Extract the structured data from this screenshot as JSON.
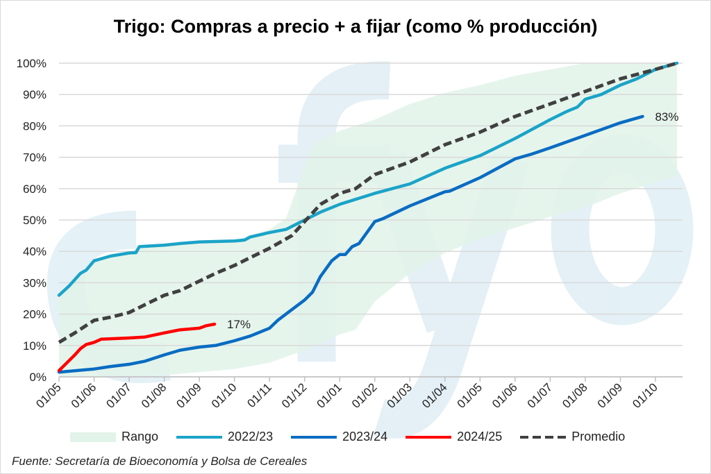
{
  "title": "Trigo: Compras a precio + a fijar (como % producción)",
  "source": "Fuente: Secretaría de Bioeconomía y Bolsa de Cereales",
  "watermark": "fyo",
  "chart_data": {
    "type": "line",
    "title": "Trigo: Compras a precio + a fijar (como % producción)",
    "x_ticks": [
      "01/05",
      "01/06",
      "01/07",
      "01/08",
      "01/09",
      "01/10",
      "01/11",
      "01/12",
      "01/01",
      "01/02",
      "01/03",
      "01/04",
      "01/05",
      "01/06",
      "01/07",
      "01/08",
      "01/09",
      "01/10"
    ],
    "y_ticks": [
      "0%",
      "10%",
      "20%",
      "30%",
      "40%",
      "50%",
      "60%",
      "70%",
      "80%",
      "90%",
      "100%"
    ],
    "ylim": [
      0,
      100
    ],
    "grid": true,
    "legend_position": "bottom",
    "band": {
      "name": "Rango",
      "color": "#e2f3e9",
      "lower": [
        [
          "01/05",
          0
        ],
        [
          "01/08",
          0.5
        ],
        [
          "01/09",
          1.5
        ],
        [
          "01/10",
          2.5
        ],
        [
          "01/11",
          4.5
        ],
        [
          "01/12",
          8.5
        ],
        [
          "01/01",
          13.5
        ],
        [
          "15/01",
          15
        ],
        [
          "01/02",
          24
        ],
        [
          "01/03",
          33
        ],
        [
          "01/04",
          39.5
        ],
        [
          "01/05",
          44
        ],
        [
          "01/06",
          47.5
        ],
        [
          "01/07",
          51
        ],
        [
          "01/08",
          54
        ],
        [
          "01/09",
          58.5
        ],
        [
          "01/10",
          62
        ],
        [
          "20/10",
          64
        ]
      ],
      "upper": [
        [
          "01/05",
          26
        ],
        [
          "20/05",
          33
        ],
        [
          "01/06",
          37
        ],
        [
          "01/07",
          39.5
        ],
        [
          "10/07",
          41.5
        ],
        [
          "01/08",
          42
        ],
        [
          "01/09",
          43
        ],
        [
          "01/10",
          43.5
        ],
        [
          "01/11",
          47
        ],
        [
          "15/11",
          50.5
        ],
        [
          "08/12",
          74
        ],
        [
          "01/01",
          78.5
        ],
        [
          "01/02",
          82
        ],
        [
          "01/03",
          87
        ],
        [
          "01/04",
          90.5
        ],
        [
          "01/05",
          93
        ],
        [
          "01/06",
          96
        ],
        [
          "01/07",
          98
        ],
        [
          "01/08",
          100
        ],
        [
          "20/10",
          100
        ]
      ]
    },
    "series": [
      {
        "name": "2022/23",
        "color": "#1ba3c8",
        "dashed": false,
        "points": [
          [
            "01/05",
            26
          ],
          [
            "10/05",
            29
          ],
          [
            "20/05",
            33
          ],
          [
            "25/05",
            34
          ],
          [
            "01/06",
            37
          ],
          [
            "15/06",
            38.5
          ],
          [
            "01/07",
            39.5
          ],
          [
            "07/07",
            39.6
          ],
          [
            "10/07",
            41.5
          ],
          [
            "01/08",
            42
          ],
          [
            "15/08",
            42.5
          ],
          [
            "01/09",
            43
          ],
          [
            "01/10",
            43.3
          ],
          [
            "10/10",
            43.6
          ],
          [
            "15/10",
            44.6
          ],
          [
            "01/11",
            46
          ],
          [
            "15/11",
            47
          ],
          [
            "01/12",
            50
          ],
          [
            "15/12",
            52.5
          ],
          [
            "01/01",
            55
          ],
          [
            "01/02",
            58.5
          ],
          [
            "01/03",
            61.5
          ],
          [
            "01/04",
            66.5
          ],
          [
            "01/05",
            70.5
          ],
          [
            "01/06",
            76
          ],
          [
            "01/07",
            82
          ],
          [
            "15/07",
            84.5
          ],
          [
            "25/07",
            86
          ],
          [
            "01/08",
            88.5
          ],
          [
            "15/08",
            90
          ],
          [
            "01/09",
            93
          ],
          [
            "15/09",
            95
          ],
          [
            "01/10",
            98
          ],
          [
            "20/10",
            100
          ]
        ]
      },
      {
        "name": "2023/24",
        "color": "#0a6cc2",
        "dashed": false,
        "points": [
          [
            "01/05",
            1.5
          ],
          [
            "01/06",
            2.5
          ],
          [
            "15/06",
            3.3
          ],
          [
            "01/07",
            4
          ],
          [
            "15/07",
            5
          ],
          [
            "01/08",
            7
          ],
          [
            "15/08",
            8.5
          ],
          [
            "01/09",
            9.5
          ],
          [
            "15/09",
            10
          ],
          [
            "01/10",
            11.5
          ],
          [
            "15/10",
            13
          ],
          [
            "01/11",
            15.5
          ],
          [
            "08/11",
            18
          ],
          [
            "15/11",
            20
          ],
          [
            "01/12",
            24.5
          ],
          [
            "08/12",
            27
          ],
          [
            "15/12",
            32
          ],
          [
            "25/12",
            37
          ],
          [
            "01/01",
            39
          ],
          [
            "06/01",
            39
          ],
          [
            "12/01",
            41.5
          ],
          [
            "18/01",
            42.5
          ],
          [
            "01/02",
            49.5
          ],
          [
            "08/02",
            50.5
          ],
          [
            "01/03",
            54.5
          ],
          [
            "01/04",
            59
          ],
          [
            "05/04",
            59.2
          ],
          [
            "01/05",
            63.5
          ],
          [
            "01/06",
            69.5
          ],
          [
            "15/06",
            71
          ],
          [
            "01/07",
            73
          ],
          [
            "01/08",
            77
          ],
          [
            "01/09",
            81
          ],
          [
            "20/09",
            83
          ]
        ]
      },
      {
        "name": "2024/25",
        "color": "#ff0000",
        "dashed": false,
        "points": [
          [
            "01/05",
            2
          ],
          [
            "08/05",
            4.5
          ],
          [
            "15/05",
            7
          ],
          [
            "20/05",
            9
          ],
          [
            "25/05",
            10.3
          ],
          [
            "01/06",
            11
          ],
          [
            "07/06",
            12
          ],
          [
            "01/07",
            12.4
          ],
          [
            "15/07",
            12.7
          ],
          [
            "01/08",
            14
          ],
          [
            "15/08",
            15
          ],
          [
            "01/09",
            15.5
          ],
          [
            "07/09",
            16.3
          ],
          [
            "14/09",
            16.8
          ]
        ]
      },
      {
        "name": "Promedio",
        "color": "#404040",
        "dashed": true,
        "points": [
          [
            "01/05",
            11
          ],
          [
            "15/05",
            14
          ],
          [
            "01/06",
            18
          ],
          [
            "15/06",
            19
          ],
          [
            "01/07",
            20.5
          ],
          [
            "15/07",
            23
          ],
          [
            "01/08",
            26
          ],
          [
            "15/08",
            27.5
          ],
          [
            "01/09",
            30.5
          ],
          [
            "15/09",
            33
          ],
          [
            "01/10",
            35.5
          ],
          [
            "15/10",
            38
          ],
          [
            "01/11",
            41
          ],
          [
            "20/11",
            45
          ],
          [
            "01/12",
            49.5
          ],
          [
            "15/12",
            55
          ],
          [
            "01/01",
            58.5
          ],
          [
            "15/01",
            60
          ],
          [
            "01/02",
            64.5
          ],
          [
            "01/03",
            68.5
          ],
          [
            "01/04",
            74
          ],
          [
            "01/05",
            78
          ],
          [
            "01/06",
            83
          ],
          [
            "01/07",
            87
          ],
          [
            "01/08",
            91
          ],
          [
            "01/09",
            95
          ],
          [
            "01/10",
            98
          ],
          [
            "20/10",
            100
          ]
        ]
      }
    ],
    "annotations": [
      {
        "series": "2024/25",
        "text": "17%"
      },
      {
        "series": "2023/24",
        "text": "83%"
      }
    ]
  },
  "legend": [
    {
      "label": "Rango",
      "type": "band",
      "color": "#e2f3e9"
    },
    {
      "label": "2022/23",
      "type": "line",
      "color": "#1ba3c8"
    },
    {
      "label": "2023/24",
      "type": "line",
      "color": "#0a6cc2"
    },
    {
      "label": "2024/25",
      "type": "line",
      "color": "#ff0000"
    },
    {
      "label": "Promedio",
      "type": "dashed",
      "color": "#404040"
    }
  ]
}
